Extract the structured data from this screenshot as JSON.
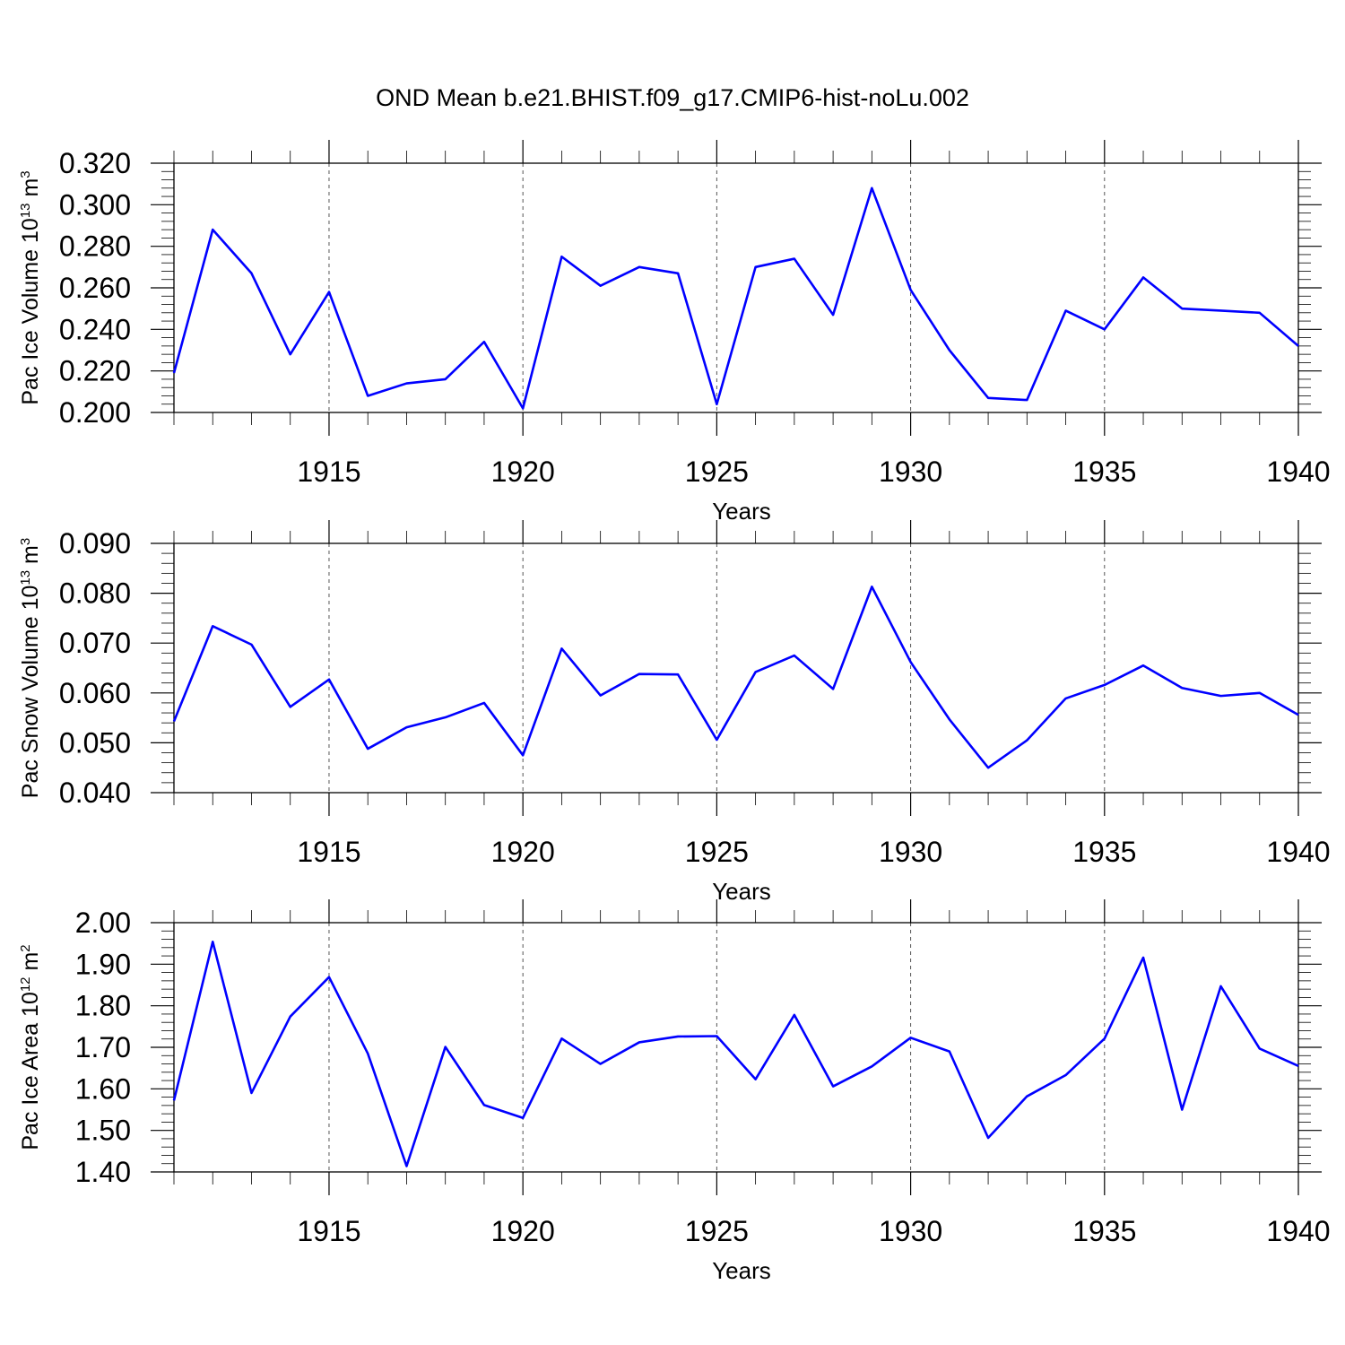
{
  "title": "OND Mean b.e21.BHIST.f09_g17.CMIP6-hist-noLu.002",
  "colors": {
    "line": "#0000ff",
    "axis": "#000000",
    "grid": "#555555"
  },
  "chart_data": [
    {
      "type": "line",
      "title": "OND Mean b.e21.BHIST.f09_g17.CMIP6-hist-noLu.002",
      "xlabel": "Years",
      "ylabel": {
        "base": "Pac Ice Volume 10",
        "exp1": "13",
        "unit": " m",
        "exp2": "3"
      },
      "xlim": [
        1911,
        1940
      ],
      "ylim": [
        0.2,
        0.32
      ],
      "xticks": [
        1915,
        1920,
        1925,
        1930,
        1935,
        1940
      ],
      "xtick_labels": [
        "1915",
        "1920",
        "1925",
        "1930",
        "1935",
        "1940"
      ],
      "yticks": [
        0.2,
        0.22,
        0.24,
        0.26,
        0.28,
        0.3,
        0.32
      ],
      "ytick_labels": [
        "0.200",
        "0.220",
        "0.240",
        "0.260",
        "0.280",
        "0.300",
        "0.320"
      ],
      "grid": "vertical dashed at major x ticks",
      "series": [
        {
          "name": "Pac Ice Volume",
          "x": [
            1911,
            1912,
            1913,
            1914,
            1915,
            1916,
            1917,
            1918,
            1919,
            1920,
            1921,
            1922,
            1923,
            1924,
            1925,
            1926,
            1927,
            1928,
            1929,
            1930,
            1931,
            1932,
            1933,
            1934,
            1935,
            1936,
            1937,
            1938,
            1939,
            1940
          ],
          "values": [
            0.219,
            0.288,
            0.267,
            0.228,
            0.258,
            0.208,
            0.214,
            0.216,
            0.234,
            0.202,
            0.275,
            0.261,
            0.27,
            0.267,
            0.204,
            0.27,
            0.274,
            0.247,
            0.308,
            0.259,
            0.23,
            0.207,
            0.206,
            0.249,
            0.24,
            0.265,
            0.25,
            0.249,
            0.248,
            0.232
          ]
        }
      ]
    },
    {
      "type": "line",
      "xlabel": "Years",
      "ylabel": {
        "base": "Pac Snow Volume 10",
        "exp1": "13",
        "unit": " m",
        "exp2": "3"
      },
      "xlim": [
        1911,
        1940
      ],
      "ylim": [
        0.04,
        0.09
      ],
      "xticks": [
        1915,
        1920,
        1925,
        1930,
        1935,
        1940
      ],
      "xtick_labels": [
        "1915",
        "1920",
        "1925",
        "1930",
        "1935",
        "1940"
      ],
      "yticks": [
        0.04,
        0.05,
        0.06,
        0.07,
        0.08,
        0.09
      ],
      "ytick_labels": [
        "0.040",
        "0.050",
        "0.060",
        "0.070",
        "0.080",
        "0.090"
      ],
      "grid": "vertical dashed at major x ticks",
      "series": [
        {
          "name": "Pac Snow Volume",
          "x": [
            1911,
            1912,
            1913,
            1914,
            1915,
            1916,
            1917,
            1918,
            1919,
            1920,
            1921,
            1922,
            1923,
            1924,
            1925,
            1926,
            1927,
            1928,
            1929,
            1930,
            1931,
            1932,
            1933,
            1934,
            1935,
            1936,
            1937,
            1938,
            1939,
            1940
          ],
          "values": [
            0.0543,
            0.0734,
            0.0697,
            0.0572,
            0.0627,
            0.0488,
            0.0531,
            0.0551,
            0.058,
            0.0475,
            0.0689,
            0.0595,
            0.0638,
            0.0637,
            0.0506,
            0.0642,
            0.0675,
            0.0608,
            0.0813,
            0.0662,
            0.0547,
            0.045,
            0.0505,
            0.0589,
            0.0616,
            0.0655,
            0.061,
            0.0594,
            0.06,
            0.0556
          ]
        }
      ]
    },
    {
      "type": "line",
      "xlabel": "Years",
      "ylabel": {
        "base": "Pac Ice Area 10",
        "exp1": "12",
        "unit": " m",
        "exp2": "2"
      },
      "xlim": [
        1911,
        1940
      ],
      "ylim": [
        1.4,
        2.0
      ],
      "xticks": [
        1915,
        1920,
        1925,
        1930,
        1935,
        1940
      ],
      "xtick_labels": [
        "1915",
        "1920",
        "1925",
        "1930",
        "1935",
        "1940"
      ],
      "yticks": [
        1.4,
        1.5,
        1.6,
        1.7,
        1.8,
        1.9,
        2.0
      ],
      "ytick_labels": [
        "1.40",
        "1.50",
        "1.60",
        "1.70",
        "1.80",
        "1.90",
        "2.00"
      ],
      "grid": "vertical dashed at major x ticks",
      "series": [
        {
          "name": "Pac Ice Area",
          "x": [
            1911,
            1912,
            1913,
            1914,
            1915,
            1916,
            1917,
            1918,
            1919,
            1920,
            1921,
            1922,
            1923,
            1924,
            1925,
            1926,
            1927,
            1928,
            1929,
            1930,
            1931,
            1932,
            1933,
            1934,
            1935,
            1936,
            1937,
            1938,
            1939,
            1940
          ],
          "values": [
            1.572,
            1.954,
            1.59,
            1.774,
            1.869,
            1.685,
            1.414,
            1.701,
            1.561,
            1.53,
            1.721,
            1.66,
            1.712,
            1.726,
            1.727,
            1.623,
            1.778,
            1.606,
            1.654,
            1.723,
            1.69,
            1.482,
            1.582,
            1.633,
            1.721,
            1.916,
            1.55,
            1.847,
            1.697,
            1.655
          ]
        }
      ]
    }
  ]
}
